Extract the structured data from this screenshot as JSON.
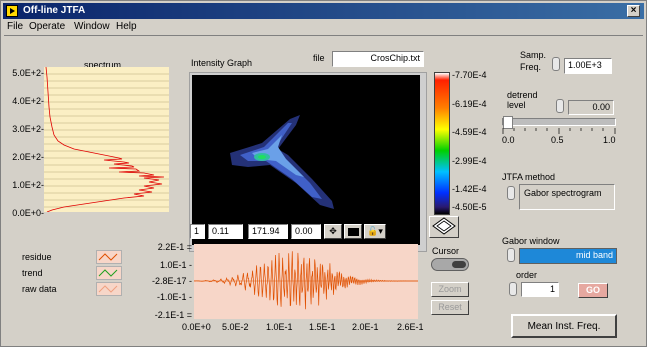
{
  "window": {
    "title": "Off-line JTFA"
  },
  "menu": [
    "File",
    "Operate",
    "Window",
    "Help"
  ],
  "spectrum": {
    "label": "spectrum",
    "yticks": [
      "5.0E+2-",
      "4.0E+2-",
      "3.0E+2-",
      "2.0E+2-",
      "1.0E+2-",
      "0.0E+0-"
    ]
  },
  "intensity": {
    "label": "Intensity Graph",
    "file_label": "file",
    "file_value": "CrosChip.txt",
    "colorbar_ticks": [
      "-7.70E-4",
      "-6.19E-4",
      "-4.59E-4",
      "-2.99E-4",
      "-1.42E-4",
      "-4.50E-5"
    ],
    "toolbar": {
      "v1": "1",
      "v2": "0.11",
      "v3": "171.94",
      "v4": "0.00"
    }
  },
  "signal": {
    "yticks": [
      "2.2E-1 =",
      "1.0E-1 -",
      "-2.8E-17 -",
      "-1.0E-1 -",
      "-2.1E-1 ="
    ],
    "xticks": [
      "0.0E+0",
      "5.0E-2",
      "1.0E-1",
      "1.5E-1",
      "2.0E-1",
      "2.6E-1"
    ],
    "legend": [
      "residue",
      "trend",
      "raw data"
    ]
  },
  "cursor": {
    "label": "Cursor",
    "zoom": "Zoom",
    "reset": "Reset"
  },
  "controls": {
    "samp_label1": "Samp.",
    "samp_label2": "Freq.",
    "samp_value": "1.00E+3",
    "detrend_label1": "detrend",
    "detrend_label2": "level",
    "detrend_value": "0.00",
    "slider_ticks": [
      "0.0",
      "0.5",
      "1.0"
    ],
    "slider_value": 0.0,
    "jtfa_label": "JTFA method",
    "jtfa_value": "Gabor spectrogram",
    "gabor_label": "Gabor window",
    "gabor_value": "mid band",
    "order_label": "order",
    "order_value": "1",
    "go": "GO",
    "mean": "Mean Inst. Freq."
  }
}
